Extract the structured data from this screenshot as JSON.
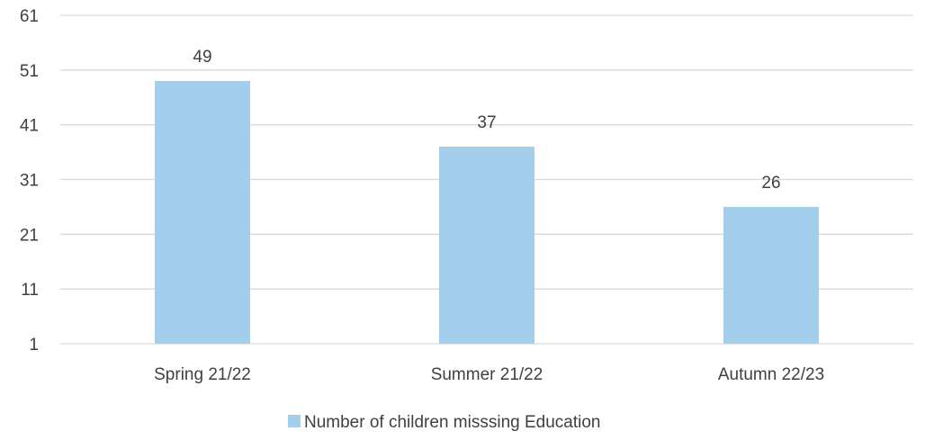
{
  "chart_data": {
    "type": "bar",
    "title": "",
    "xlabel": "",
    "ylabel": "",
    "categories": [
      "Spring 21/22",
      "Summer 21/22",
      "Autumn 22/23"
    ],
    "series": [
      {
        "name": "Number of children misssing Education",
        "values": [
          49,
          37,
          26
        ],
        "color": "#a3cfec"
      }
    ],
    "ylim": [
      1,
      61
    ],
    "yticks": [
      1,
      11,
      21,
      31,
      41,
      51,
      61
    ],
    "grid": true,
    "data_labels": true,
    "legend": "bottom-center"
  }
}
